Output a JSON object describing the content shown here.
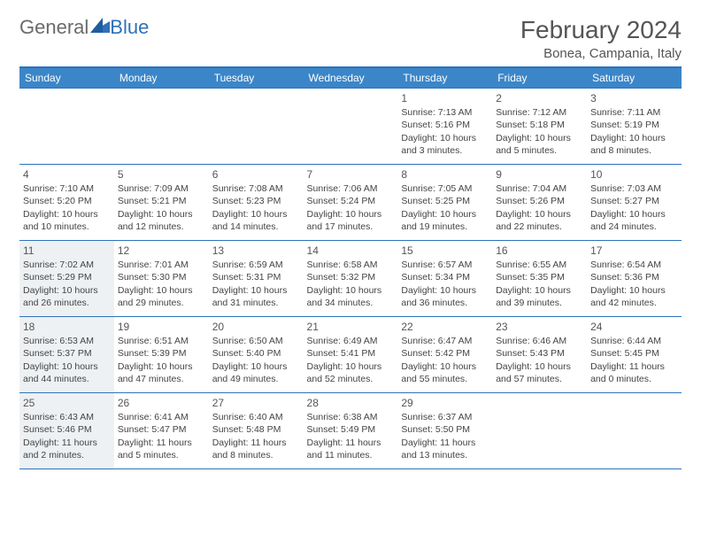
{
  "brand": {
    "part1": "General",
    "part2": "Blue"
  },
  "title": "February 2024",
  "location": "Bonea, Campania, Italy",
  "colors": {
    "header_bg": "#3b86c8",
    "rule": "#2f72b9",
    "shaded_bg": "#eef1f3",
    "text": "#444444",
    "logo_gray": "#6b6b6b",
    "logo_blue": "#2f72b9"
  },
  "dow": [
    "Sunday",
    "Monday",
    "Tuesday",
    "Wednesday",
    "Thursday",
    "Friday",
    "Saturday"
  ],
  "weeks": [
    [
      null,
      null,
      null,
      null,
      {
        "n": "1",
        "sr": "Sunrise: 7:13 AM",
        "ss": "Sunset: 5:16 PM",
        "d1": "Daylight: 10 hours",
        "d2": "and 3 minutes."
      },
      {
        "n": "2",
        "sr": "Sunrise: 7:12 AM",
        "ss": "Sunset: 5:18 PM",
        "d1": "Daylight: 10 hours",
        "d2": "and 5 minutes."
      },
      {
        "n": "3",
        "sr": "Sunrise: 7:11 AM",
        "ss": "Sunset: 5:19 PM",
        "d1": "Daylight: 10 hours",
        "d2": "and 8 minutes."
      }
    ],
    [
      {
        "n": "4",
        "sr": "Sunrise: 7:10 AM",
        "ss": "Sunset: 5:20 PM",
        "d1": "Daylight: 10 hours",
        "d2": "and 10 minutes."
      },
      {
        "n": "5",
        "sr": "Sunrise: 7:09 AM",
        "ss": "Sunset: 5:21 PM",
        "d1": "Daylight: 10 hours",
        "d2": "and 12 minutes."
      },
      {
        "n": "6",
        "sr": "Sunrise: 7:08 AM",
        "ss": "Sunset: 5:23 PM",
        "d1": "Daylight: 10 hours",
        "d2": "and 14 minutes."
      },
      {
        "n": "7",
        "sr": "Sunrise: 7:06 AM",
        "ss": "Sunset: 5:24 PM",
        "d1": "Daylight: 10 hours",
        "d2": "and 17 minutes."
      },
      {
        "n": "8",
        "sr": "Sunrise: 7:05 AM",
        "ss": "Sunset: 5:25 PM",
        "d1": "Daylight: 10 hours",
        "d2": "and 19 minutes."
      },
      {
        "n": "9",
        "sr": "Sunrise: 7:04 AM",
        "ss": "Sunset: 5:26 PM",
        "d1": "Daylight: 10 hours",
        "d2": "and 22 minutes."
      },
      {
        "n": "10",
        "sr": "Sunrise: 7:03 AM",
        "ss": "Sunset: 5:27 PM",
        "d1": "Daylight: 10 hours",
        "d2": "and 24 minutes."
      }
    ],
    [
      {
        "n": "11",
        "sr": "Sunrise: 7:02 AM",
        "ss": "Sunset: 5:29 PM",
        "d1": "Daylight: 10 hours",
        "d2": "and 26 minutes.",
        "shaded": true
      },
      {
        "n": "12",
        "sr": "Sunrise: 7:01 AM",
        "ss": "Sunset: 5:30 PM",
        "d1": "Daylight: 10 hours",
        "d2": "and 29 minutes."
      },
      {
        "n": "13",
        "sr": "Sunrise: 6:59 AM",
        "ss": "Sunset: 5:31 PM",
        "d1": "Daylight: 10 hours",
        "d2": "and 31 minutes."
      },
      {
        "n": "14",
        "sr": "Sunrise: 6:58 AM",
        "ss": "Sunset: 5:32 PM",
        "d1": "Daylight: 10 hours",
        "d2": "and 34 minutes."
      },
      {
        "n": "15",
        "sr": "Sunrise: 6:57 AM",
        "ss": "Sunset: 5:34 PM",
        "d1": "Daylight: 10 hours",
        "d2": "and 36 minutes."
      },
      {
        "n": "16",
        "sr": "Sunrise: 6:55 AM",
        "ss": "Sunset: 5:35 PM",
        "d1": "Daylight: 10 hours",
        "d2": "and 39 minutes."
      },
      {
        "n": "17",
        "sr": "Sunrise: 6:54 AM",
        "ss": "Sunset: 5:36 PM",
        "d1": "Daylight: 10 hours",
        "d2": "and 42 minutes."
      }
    ],
    [
      {
        "n": "18",
        "sr": "Sunrise: 6:53 AM",
        "ss": "Sunset: 5:37 PM",
        "d1": "Daylight: 10 hours",
        "d2": "and 44 minutes.",
        "shaded": true
      },
      {
        "n": "19",
        "sr": "Sunrise: 6:51 AM",
        "ss": "Sunset: 5:39 PM",
        "d1": "Daylight: 10 hours",
        "d2": "and 47 minutes."
      },
      {
        "n": "20",
        "sr": "Sunrise: 6:50 AM",
        "ss": "Sunset: 5:40 PM",
        "d1": "Daylight: 10 hours",
        "d2": "and 49 minutes."
      },
      {
        "n": "21",
        "sr": "Sunrise: 6:49 AM",
        "ss": "Sunset: 5:41 PM",
        "d1": "Daylight: 10 hours",
        "d2": "and 52 minutes."
      },
      {
        "n": "22",
        "sr": "Sunrise: 6:47 AM",
        "ss": "Sunset: 5:42 PM",
        "d1": "Daylight: 10 hours",
        "d2": "and 55 minutes."
      },
      {
        "n": "23",
        "sr": "Sunrise: 6:46 AM",
        "ss": "Sunset: 5:43 PM",
        "d1": "Daylight: 10 hours",
        "d2": "and 57 minutes."
      },
      {
        "n": "24",
        "sr": "Sunrise: 6:44 AM",
        "ss": "Sunset: 5:45 PM",
        "d1": "Daylight: 11 hours",
        "d2": "and 0 minutes."
      }
    ],
    [
      {
        "n": "25",
        "sr": "Sunrise: 6:43 AM",
        "ss": "Sunset: 5:46 PM",
        "d1": "Daylight: 11 hours",
        "d2": "and 2 minutes.",
        "shaded": true
      },
      {
        "n": "26",
        "sr": "Sunrise: 6:41 AM",
        "ss": "Sunset: 5:47 PM",
        "d1": "Daylight: 11 hours",
        "d2": "and 5 minutes."
      },
      {
        "n": "27",
        "sr": "Sunrise: 6:40 AM",
        "ss": "Sunset: 5:48 PM",
        "d1": "Daylight: 11 hours",
        "d2": "and 8 minutes."
      },
      {
        "n": "28",
        "sr": "Sunrise: 6:38 AM",
        "ss": "Sunset: 5:49 PM",
        "d1": "Daylight: 11 hours",
        "d2": "and 11 minutes."
      },
      {
        "n": "29",
        "sr": "Sunrise: 6:37 AM",
        "ss": "Sunset: 5:50 PM",
        "d1": "Daylight: 11 hours",
        "d2": "and 13 minutes."
      },
      null,
      null
    ]
  ]
}
